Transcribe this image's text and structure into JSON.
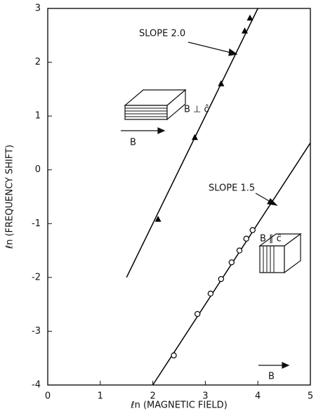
{
  "chart_data": {
    "type": "scatter",
    "xlabel": "ℓn (MAGNETIC FIELD)",
    "ylabel": "ℓn (FREQUENCY SHIFT)",
    "xlim": [
      0,
      5
    ],
    "ylim": [
      -4,
      3
    ],
    "xticks": [
      0,
      1,
      2,
      3,
      4,
      5
    ],
    "yticks": [
      -4,
      -3,
      -2,
      -1,
      0,
      1,
      2,
      3
    ],
    "series": [
      {
        "marker": "triangle",
        "color": "#000000",
        "x": [
          2.1,
          2.8,
          3.3,
          3.75,
          3.85
        ],
        "values": [
          -0.92,
          0.6,
          1.6,
          2.58,
          2.82
        ]
      },
      {
        "marker": "circle",
        "color": "#000000",
        "x": [
          2.4,
          2.85,
          3.1,
          3.3,
          3.5,
          3.65,
          3.78,
          3.9
        ],
        "values": [
          -3.45,
          -2.68,
          -2.3,
          -2.03,
          -1.72,
          -1.5,
          -1.28,
          -1.12
        ]
      }
    ],
    "lines": [
      {
        "color": "#000000",
        "x": [
          1.5,
          4.0
        ],
        "values": [
          -2,
          3
        ]
      },
      {
        "color": "#000000",
        "x": [
          2.0,
          5.0
        ],
        "values": [
          -4,
          0.5
        ]
      }
    ],
    "annotations": [
      "SLOPE 2.0",
      "B ⊥ ĉ",
      "B",
      "SLOPE 1.5",
      "B ∥ ĉ",
      "B"
    ]
  }
}
